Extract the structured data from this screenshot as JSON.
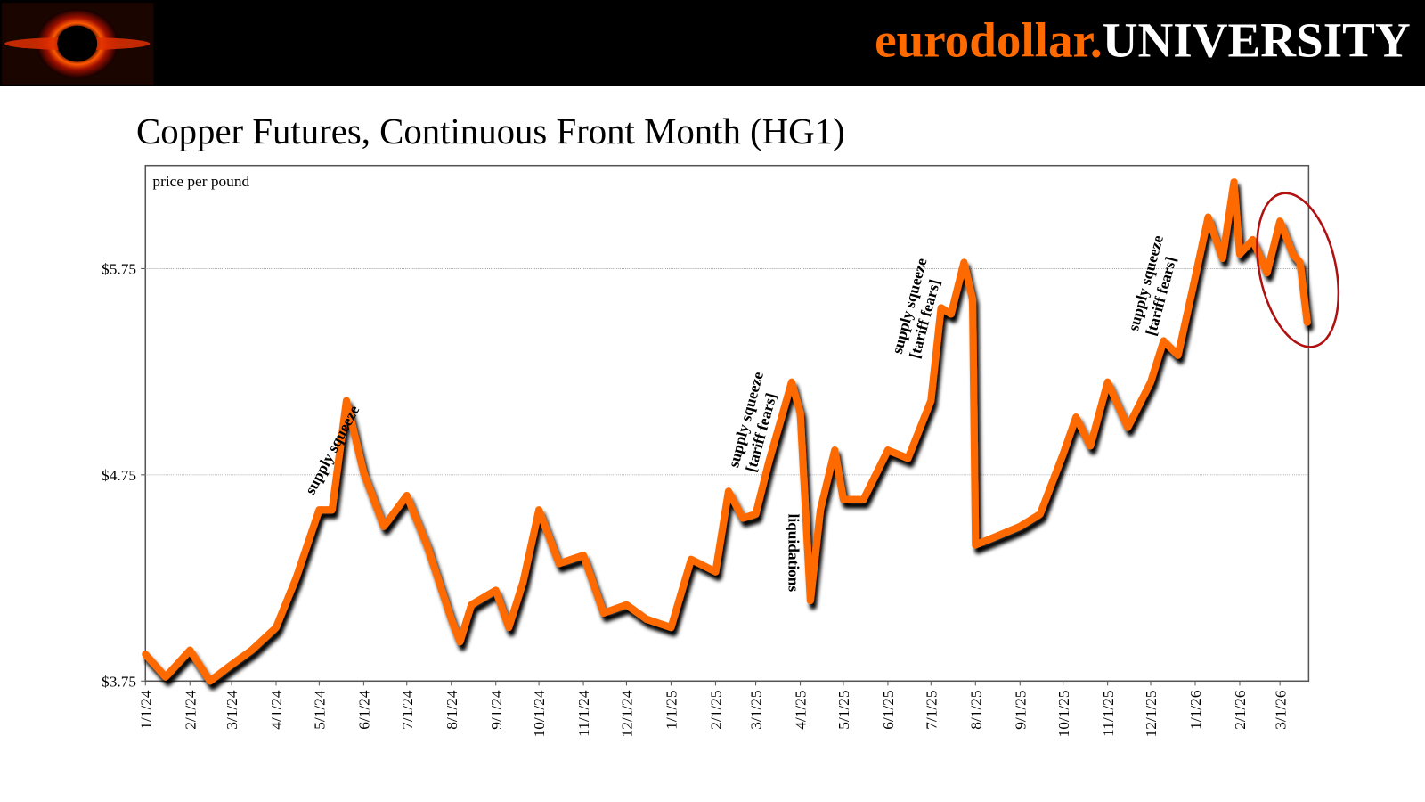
{
  "header": {
    "brand_a": "eurodollar.",
    "brand_b": "UNIVERSITY"
  },
  "chart_data": {
    "type": "line",
    "title": "Copper Futures, Continuous Front Month (HG1)",
    "y_label": "price per pound",
    "x": [
      "2024-01-01",
      "2024-01-15",
      "2024-02-01",
      "2024-02-15",
      "2024-03-01",
      "2024-03-15",
      "2024-04-01",
      "2024-04-15",
      "2024-05-01",
      "2024-05-10",
      "2024-05-20",
      "2024-06-01",
      "2024-06-15",
      "2024-07-01",
      "2024-07-15",
      "2024-08-01",
      "2024-08-07",
      "2024-08-15",
      "2024-09-01",
      "2024-09-10",
      "2024-09-20",
      "2024-10-01",
      "2024-10-15",
      "2024-11-01",
      "2024-11-15",
      "2024-12-01",
      "2024-12-15",
      "2025-01-01",
      "2025-01-15",
      "2025-02-01",
      "2025-02-10",
      "2025-02-20",
      "2025-03-01",
      "2025-03-10",
      "2025-03-26",
      "2025-04-01",
      "2025-04-08",
      "2025-04-15",
      "2025-04-25",
      "2025-05-01",
      "2025-05-15",
      "2025-06-01",
      "2025-06-15",
      "2025-07-01",
      "2025-07-08",
      "2025-07-15",
      "2025-07-24",
      "2025-07-30",
      "2025-08-01",
      "2025-08-15",
      "2025-09-01",
      "2025-09-15",
      "2025-10-01",
      "2025-10-10",
      "2025-10-20",
      "2025-11-01",
      "2025-11-15",
      "2025-12-01",
      "2025-12-10",
      "2025-12-20",
      "2026-01-01",
      "2026-01-10",
      "2026-01-20",
      "2026-01-28",
      "2026-02-01",
      "2026-02-10",
      "2026-02-20",
      "2026-03-01",
      "2026-03-10",
      "2026-03-15",
      "2026-03-20"
    ],
    "series": [
      {
        "name": "HG1",
        "color": "#ff6a00",
        "values": [
          3.88,
          3.77,
          3.9,
          3.75,
          3.83,
          3.9,
          4.01,
          4.25,
          4.58,
          4.58,
          5.11,
          4.76,
          4.5,
          4.65,
          4.41,
          4.05,
          3.94,
          4.12,
          4.19,
          4.01,
          4.23,
          4.58,
          4.32,
          4.36,
          4.08,
          4.12,
          4.05,
          4.01,
          4.34,
          4.28,
          4.67,
          4.54,
          4.56,
          4.81,
          5.2,
          5.05,
          4.14,
          4.58,
          4.87,
          4.63,
          4.63,
          4.87,
          4.83,
          5.11,
          5.56,
          5.53,
          5.78,
          5.6,
          4.41,
          4.45,
          4.5,
          4.56,
          4.85,
          5.03,
          4.89,
          5.2,
          4.98,
          5.2,
          5.4,
          5.33,
          5.71,
          6.0,
          5.8,
          6.17,
          5.82,
          5.89,
          5.73,
          5.98,
          5.82,
          5.78,
          5.49
        ]
      }
    ],
    "xlim": [
      "2024-01-01",
      "2026-03-21"
    ],
    "ylim": [
      3.75,
      6.25
    ],
    "yticks": [
      {
        "value": 3.75,
        "label": "$3.75"
      },
      {
        "value": 4.75,
        "label": "$4.75"
      },
      {
        "value": 5.75,
        "label": "$5.75"
      }
    ],
    "xticks": [
      {
        "value": "2024-01-01",
        "label": "1/1/24"
      },
      {
        "value": "2024-02-01",
        "label": "2/1/24"
      },
      {
        "value": "2024-03-01",
        "label": "3/1/24"
      },
      {
        "value": "2024-04-01",
        "label": "4/1/24"
      },
      {
        "value": "2024-05-01",
        "label": "5/1/24"
      },
      {
        "value": "2024-06-01",
        "label": "6/1/24"
      },
      {
        "value": "2024-07-01",
        "label": "7/1/24"
      },
      {
        "value": "2024-08-01",
        "label": "8/1/24"
      },
      {
        "value": "2024-09-01",
        "label": "9/1/24"
      },
      {
        "value": "2024-10-01",
        "label": "10/1/24"
      },
      {
        "value": "2024-11-01",
        "label": "11/1/24"
      },
      {
        "value": "2024-12-01",
        "label": "12/1/24"
      },
      {
        "value": "2025-01-01",
        "label": "1/1/25"
      },
      {
        "value": "2025-02-01",
        "label": "2/1/25"
      },
      {
        "value": "2025-03-01",
        "label": "3/1/25"
      },
      {
        "value": "2025-04-01",
        "label": "4/1/25"
      },
      {
        "value": "2025-05-01",
        "label": "5/1/25"
      },
      {
        "value": "2025-06-01",
        "label": "6/1/25"
      },
      {
        "value": "2025-07-01",
        "label": "7/1/25"
      },
      {
        "value": "2025-08-01",
        "label": "8/1/25"
      },
      {
        "value": "2025-09-01",
        "label": "9/1/25"
      },
      {
        "value": "2025-10-01",
        "label": "10/1/25"
      },
      {
        "value": "2025-11-01",
        "label": "11/1/25"
      },
      {
        "value": "2025-12-01",
        "label": "12/1/25"
      },
      {
        "value": "2026-01-01",
        "label": "1/1/26"
      },
      {
        "value": "2026-02-01",
        "label": "2/1/26"
      },
      {
        "value": "2026-03-01",
        "label": "3/1/26"
      }
    ],
    "grid": true,
    "annotations": [
      {
        "lines": [
          "supply squeeze"
        ]
      },
      {
        "lines": [
          "supply squeeze",
          "[tariff fears]"
        ]
      },
      {
        "lines": [
          "liquidations"
        ]
      },
      {
        "lines": [
          "supply squeeze",
          "[tariff fears]"
        ]
      },
      {
        "lines": [
          "supply squeeze",
          "[tariff fears]"
        ]
      }
    ]
  }
}
